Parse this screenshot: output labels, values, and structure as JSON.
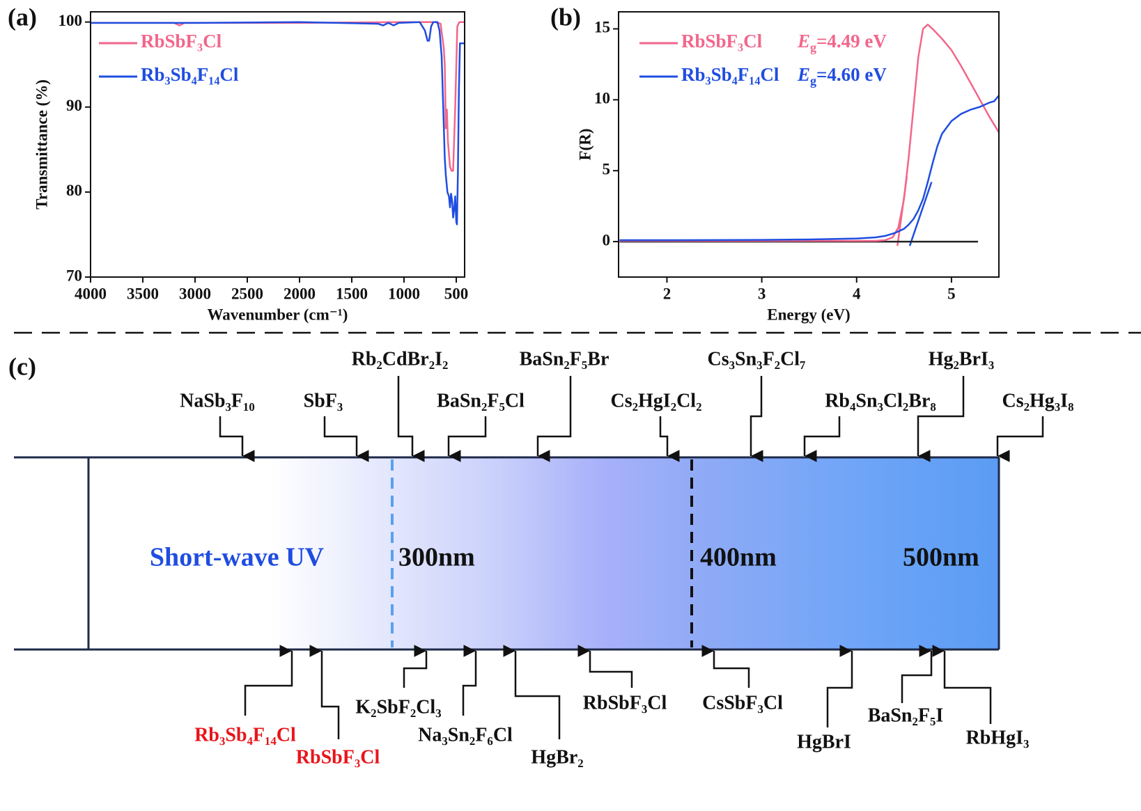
{
  "chart_data": [
    {
      "type": "line",
      "panel_label": "(a)",
      "x_label": "Wavenumber (cm⁻¹)",
      "y_label": "Transmittance (%)",
      "xlim": [
        4000,
        420
      ],
      "xticks": [
        4000,
        3500,
        3000,
        2500,
        2000,
        1500,
        1000,
        500
      ],
      "ylim": [
        70,
        101.2
      ],
      "yticks": [
        70,
        80,
        90,
        100
      ],
      "legend": "upper left",
      "series": [
        {
          "name": "RbSbF₃Cl",
          "color": "#f2668b",
          "x": [
            4000,
            3200,
            3150,
            3100,
            2000,
            1000,
            700,
            650,
            620,
            610,
            600,
            590,
            580,
            560,
            545,
            530,
            510,
            490,
            470,
            420
          ],
          "values": [
            99.9,
            99.9,
            99.6,
            99.9,
            99.9,
            100,
            100,
            99.8,
            97,
            95,
            87.5,
            89.7,
            86,
            83,
            82.5,
            82.5,
            90,
            99.5,
            100,
            100
          ]
        },
        {
          "name": "Rb₃Sb₄F₁₄Cl",
          "color": "#1f4de0",
          "x": [
            4000,
            3000,
            2000,
            1250,
            1200,
            1150,
            1100,
            1050,
            850,
            800,
            775,
            760,
            740,
            720,
            680,
            660,
            640,
            625,
            610,
            600,
            585,
            570,
            560,
            550,
            540,
            530,
            520,
            510,
            500,
            493,
            485,
            475,
            465,
            420
          ],
          "values": [
            99.9,
            99.9,
            100,
            99.8,
            99.6,
            99.9,
            99.6,
            99.9,
            100,
            99,
            97.8,
            97.8,
            99.5,
            100,
            100,
            99,
            96,
            90,
            84,
            82,
            80,
            79.5,
            78.2,
            79.8,
            79,
            77,
            78,
            79.5,
            76.5,
            76.2,
            82,
            92,
            97.5,
            97.5
          ]
        }
      ]
    },
    {
      "type": "line",
      "panel_label": "(b)",
      "x_label": "Energy (eV)",
      "y_label": "F(R)",
      "xlim": [
        1.49,
        5.5
      ],
      "xticks": [
        2,
        3,
        4,
        5
      ],
      "ylim": [
        -2.5,
        16.2
      ],
      "yticks": [
        0,
        5,
        10,
        15
      ],
      "legend": "upper left",
      "gap_symbol": "E",
      "gap_subscript": "g",
      "series": [
        {
          "name": "RbSbF₃Cl",
          "color": "#f2668b",
          "gap_text": "=4.49 eV",
          "x": [
            1.5,
            2,
            3,
            4,
            4.2,
            4.3,
            4.38,
            4.44,
            4.5,
            4.55,
            4.6,
            4.65,
            4.7,
            4.75,
            4.8,
            4.9,
            5.0,
            5.1,
            5.2,
            5.3,
            5.4,
            5.5
          ],
          "values": [
            0.05,
            0.05,
            0.05,
            0.05,
            0.05,
            0.1,
            0.3,
            1,
            3,
            6,
            9.5,
            13,
            15,
            15.3,
            15.0,
            14.3,
            13.5,
            12.4,
            11.2,
            10,
            8.8,
            7.7
          ]
        },
        {
          "name": "Rb₃Sb₄F₁₄Cl",
          "color": "#1f4de0",
          "gap_text": "=4.60 eV",
          "x": [
            1.5,
            2,
            3,
            3.5,
            4,
            4.2,
            4.3,
            4.4,
            4.5,
            4.55,
            4.6,
            4.65,
            4.7,
            4.75,
            4.8,
            4.85,
            4.9,
            5.0,
            5.1,
            5.2,
            5.3,
            5.4,
            5.45,
            5.5
          ],
          "values": [
            0.1,
            0.1,
            0.12,
            0.15,
            0.22,
            0.3,
            0.4,
            0.6,
            0.9,
            1.2,
            1.6,
            2.2,
            3.0,
            4.2,
            5.5,
            6.7,
            7.6,
            8.5,
            9.0,
            9.3,
            9.5,
            9.8,
            9.9,
            10.3
          ]
        }
      ],
      "fit_lines": [
        {
          "color": "#f2668b",
          "x": [
            4.43,
            4.53
          ],
          "values": [
            -0.3,
            4.6
          ]
        },
        {
          "color": "#1f4de0",
          "x": [
            4.56,
            4.79
          ],
          "values": [
            -0.3,
            4.2
          ]
        },
        {
          "color": "#222222",
          "x": [
            1.5,
            5.28
          ],
          "values": [
            0,
            0
          ]
        }
      ]
    }
  ],
  "diagram": {
    "panel_label": "(c)",
    "region_label": "Short-wave UV",
    "markers": [
      "300nm",
      "400nm",
      "500nm"
    ],
    "top_labels": [
      "NaSb₃F₁₀",
      "SbF₃",
      "Rb₂CdBr₂I₂",
      "BaSn₂F₅Cl",
      "BaSn₂F₅Br",
      "Cs₂HgI₂Cl₂",
      "Cs₃Sn₃F₂Cl₇",
      "Rb₄Sn₃Cl₂Br₈",
      "Hg₂BrI₃",
      "Cs₂Hg₃I₈"
    ],
    "bottom_labels": [
      {
        "text": "Rb₃Sb₄F₁₄Cl",
        "color": "#e8141a"
      },
      {
        "text": "RbSbF₃Cl",
        "color": "#e8141a"
      },
      {
        "text": "K₂SbF₂Cl₃",
        "color": "#111111"
      },
      {
        "text": "Na₃Sn₂F₆Cl",
        "color": "#111111"
      },
      {
        "text": "HgBr₂",
        "color": "#111111"
      },
      {
        "text": "RbSbF₃Cl",
        "color": "#111111"
      },
      {
        "text": "CsSbF₃Cl",
        "color": "#111111"
      },
      {
        "text": "HgBrI",
        "color": "#111111"
      },
      {
        "text": "BaSn₂F₅I",
        "color": "#111111"
      },
      {
        "text": "RbHgI₃",
        "color": "#111111"
      }
    ]
  }
}
